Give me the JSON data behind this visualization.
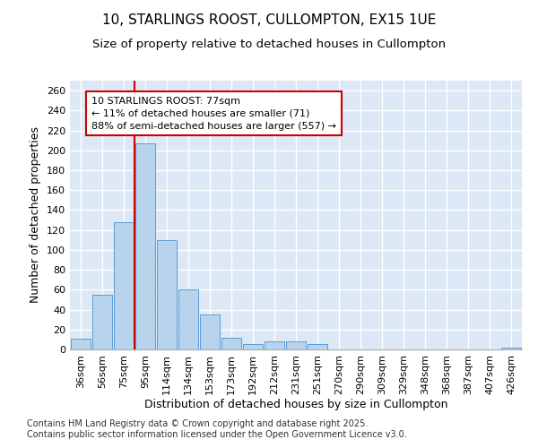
{
  "title_line1": "10, STARLINGS ROOST, CULLOMPTON, EX15 1UE",
  "title_line2": "Size of property relative to detached houses in Cullompton",
  "xlabel": "Distribution of detached houses by size in Cullompton",
  "ylabel": "Number of detached properties",
  "categories": [
    "36sqm",
    "56sqm",
    "75sqm",
    "95sqm",
    "114sqm",
    "134sqm",
    "153sqm",
    "173sqm",
    "192sqm",
    "212sqm",
    "231sqm",
    "251sqm",
    "270sqm",
    "290sqm",
    "309sqm",
    "329sqm",
    "348sqm",
    "368sqm",
    "387sqm",
    "407sqm",
    "426sqm"
  ],
  "values": [
    11,
    55,
    128,
    207,
    110,
    60,
    35,
    12,
    5,
    8,
    8,
    5,
    0,
    0,
    0,
    0,
    0,
    0,
    0,
    0,
    2
  ],
  "bar_color": "#b8d4ec",
  "bar_edge_color": "#5b9bd5",
  "vline_color": "#cc0000",
  "vline_pos": 2.5,
  "annotation_text": "10 STARLINGS ROOST: 77sqm\n← 11% of detached houses are smaller (71)\n88% of semi-detached houses are larger (557) →",
  "annotation_box_color": "#ffffff",
  "annotation_box_edge_color": "#cc0000",
  "ylim": [
    0,
    270
  ],
  "yticks": [
    0,
    20,
    40,
    60,
    80,
    100,
    120,
    140,
    160,
    180,
    200,
    220,
    240,
    260
  ],
  "background_color": "#dce8f5",
  "grid_color": "#ffffff",
  "footer_text": "Contains HM Land Registry data © Crown copyright and database right 2025.\nContains public sector information licensed under the Open Government Licence v3.0.",
  "title_fontsize": 11,
  "subtitle_fontsize": 9.5,
  "axis_label_fontsize": 9,
  "tick_fontsize": 8,
  "annotation_fontsize": 8,
  "footer_fontsize": 7
}
